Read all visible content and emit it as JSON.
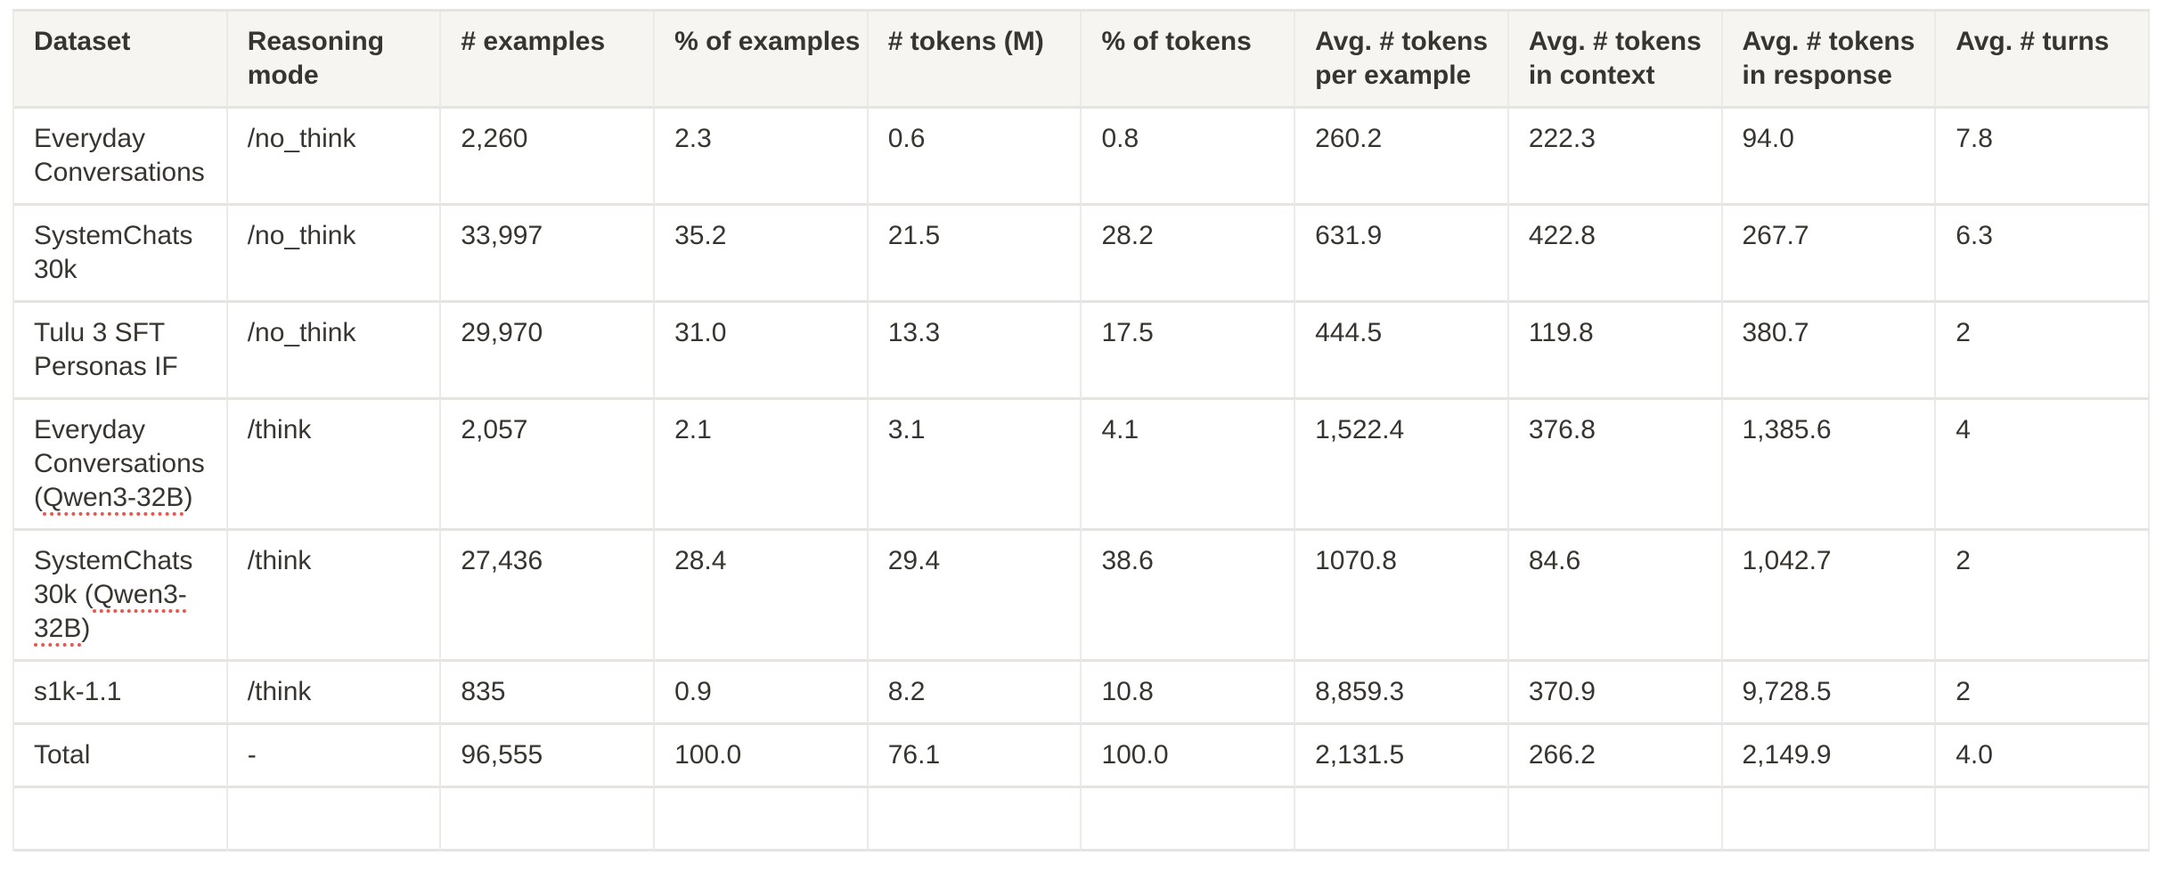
{
  "colors": {
    "page_bg": "#ffffff",
    "header_bg": "#f6f5f1",
    "border_h": "#e6e4e1",
    "border_v": "#eceae7",
    "text": "#37352f",
    "spellcheck": "#e8584e"
  },
  "table": {
    "headers": [
      "Dataset",
      "Reasoning mode",
      "# examples",
      "% of examples",
      "# tokens (M)",
      "% of tokens",
      "Avg. # tokens per example",
      "Avg. # tokens in context",
      "Avg. # tokens in response",
      "Avg. # turns"
    ],
    "rows": [
      {
        "dataset_pre": "Everyday Conversations",
        "dataset_marked": "",
        "dataset_post": "",
        "reasoning_mode": "/no_think",
        "examples": "2,260",
        "pct_examples": "2.3",
        "tokens_m": "0.6",
        "pct_tokens": "0.8",
        "avg_tokens_per_example": "260.2",
        "avg_tokens_in_context": "222.3",
        "avg_tokens_in_response": "94.0",
        "avg_turns": "7.8"
      },
      {
        "dataset_pre": "SystemChats 30k",
        "dataset_marked": "",
        "dataset_post": "",
        "reasoning_mode": "/no_think",
        "examples": "33,997",
        "pct_examples": "35.2",
        "tokens_m": "21.5",
        "pct_tokens": "28.2",
        "avg_tokens_per_example": "631.9",
        "avg_tokens_in_context": "422.8",
        "avg_tokens_in_response": "267.7",
        "avg_turns": "6.3"
      },
      {
        "dataset_pre": "Tulu 3 SFT Personas IF",
        "dataset_marked": "",
        "dataset_post": "",
        "reasoning_mode": "/no_think",
        "examples": "29,970",
        "pct_examples": "31.0",
        "tokens_m": "13.3",
        "pct_tokens": "17.5",
        "avg_tokens_per_example": "444.5",
        "avg_tokens_in_context": "119.8",
        "avg_tokens_in_response": "380.7",
        "avg_turns": "2"
      },
      {
        "dataset_pre": "Everyday Conversations (",
        "dataset_marked": "Qwen3-32B",
        "dataset_post": ")",
        "reasoning_mode": "/think",
        "examples": "2,057",
        "pct_examples": "2.1",
        "tokens_m": "3.1",
        "pct_tokens": "4.1",
        "avg_tokens_per_example": "1,522.4",
        "avg_tokens_in_context": "376.8",
        "avg_tokens_in_response": "1,385.6",
        "avg_turns": "4"
      },
      {
        "dataset_pre": "SystemChats 30k (",
        "dataset_marked": "Qwen3-32B",
        "dataset_post": ")",
        "reasoning_mode": "/think",
        "examples": "27,436",
        "pct_examples": "28.4",
        "tokens_m": "29.4",
        "pct_tokens": "38.6",
        "avg_tokens_per_example": "1070.8",
        "avg_tokens_in_context": "84.6",
        "avg_tokens_in_response": "1,042.7",
        "avg_turns": "2"
      },
      {
        "dataset_pre": "s1k-1.1",
        "dataset_marked": "",
        "dataset_post": "",
        "reasoning_mode": "/think",
        "examples": "835",
        "pct_examples": "0.9",
        "tokens_m": "8.2",
        "pct_tokens": "10.8",
        "avg_tokens_per_example": "8,859.3",
        "avg_tokens_in_context": "370.9",
        "avg_tokens_in_response": "9,728.5",
        "avg_turns": "2"
      },
      {
        "dataset_pre": "Total",
        "dataset_marked": "",
        "dataset_post": "",
        "reasoning_mode": "-",
        "examples": "96,555",
        "pct_examples": "100.0",
        "tokens_m": "76.1",
        "pct_tokens": "100.0",
        "avg_tokens_per_example": "2,131.5",
        "avg_tokens_in_context": "266.2",
        "avg_tokens_in_response": "2,149.9",
        "avg_turns": "4.0"
      }
    ]
  }
}
